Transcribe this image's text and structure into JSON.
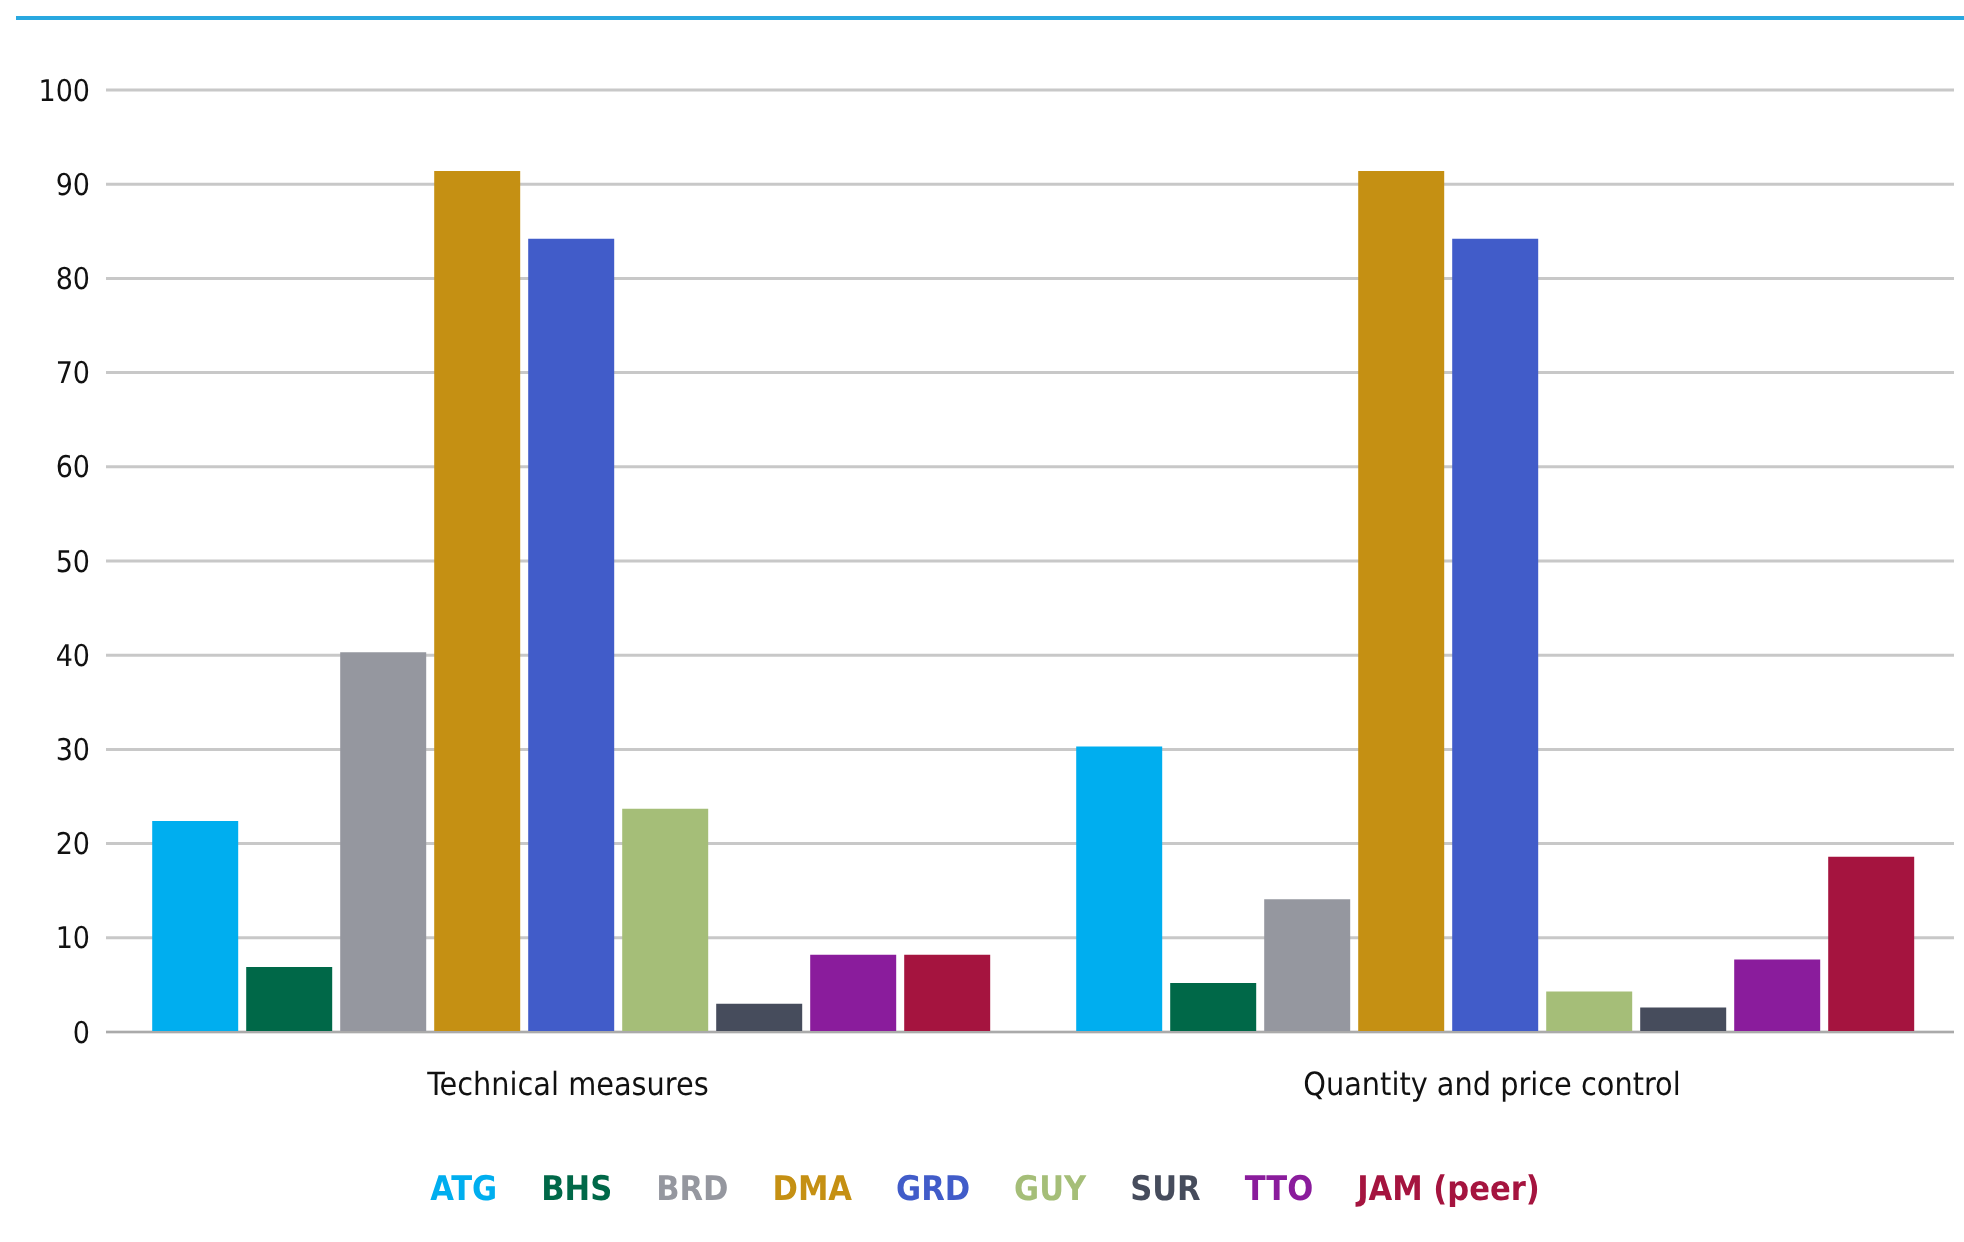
{
  "chart_data": {
    "type": "bar",
    "categories": [
      "Technical measures",
      "Quantity and price control"
    ],
    "series": [
      {
        "name": "ATG",
        "color": "#00aeef",
        "values": [
          22.4,
          30.3
        ]
      },
      {
        "name": "BHS",
        "color": "#006848",
        "values": [
          6.9,
          5.2
        ]
      },
      {
        "name": "BRD",
        "color": "#95979f",
        "values": [
          40.3,
          14.1
        ]
      },
      {
        "name": "DMA",
        "color": "#c59013",
        "values": [
          91.4,
          91.4
        ]
      },
      {
        "name": "GRD",
        "color": "#415cc9",
        "values": [
          84.2,
          84.2
        ]
      },
      {
        "name": "GUY",
        "color": "#a5be78",
        "values": [
          23.7,
          4.3
        ]
      },
      {
        "name": "SUR",
        "color": "#464c5c",
        "values": [
          3.0,
          2.6
        ]
      },
      {
        "name": "TTO",
        "color": "#8a1c9c",
        "values": [
          8.2,
          7.7
        ]
      },
      {
        "name": "JAM (peer)",
        "color": "#a5143f",
        "values": [
          8.2,
          18.6
        ]
      }
    ],
    "ylim": [
      0,
      100
    ],
    "yticks": [
      0,
      10,
      20,
      30,
      40,
      50,
      60,
      70,
      80,
      90,
      100
    ],
    "grid": "y",
    "legend": "bottom"
  }
}
